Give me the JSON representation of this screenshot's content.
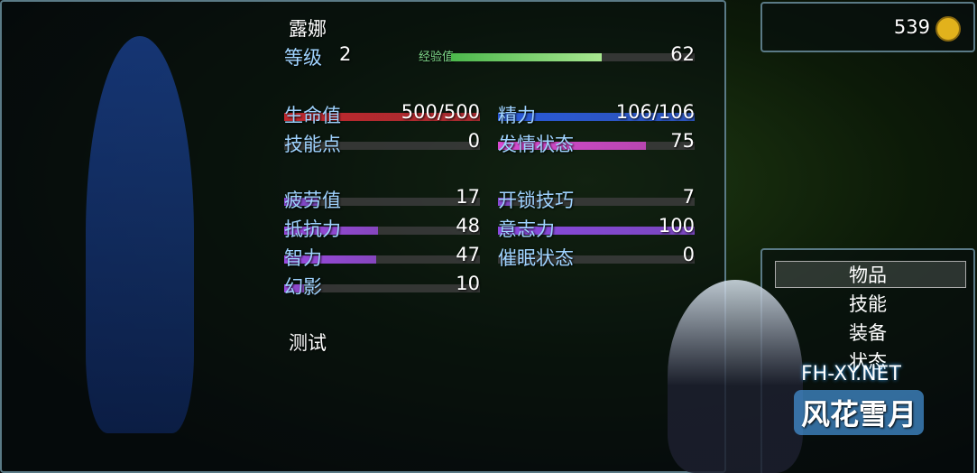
{
  "name": "露娜",
  "level_label": "等级",
  "level": 2,
  "exp_label": "经验值",
  "exp": 62,
  "stats_left": [
    {
      "label": "生命值",
      "value": "500/500",
      "color": "#c0282e"
    },
    {
      "label": "技能点",
      "value": 0,
      "color": "#8a4ad8"
    },
    {
      "label": "疲劳值",
      "value": 17,
      "color": "#8a4ad8"
    },
    {
      "label": "抵抗力",
      "value": 48,
      "color": "#9a4ae0"
    },
    {
      "label": "智力",
      "value": 47,
      "color": "#9a4ae0"
    },
    {
      "label": "幻影",
      "value": 10,
      "color": "#9a4ae0"
    }
  ],
  "stats_right": [
    {
      "label": "精力",
      "value": "106/106",
      "color": "#2a5ad8"
    },
    {
      "label": "发情状态",
      "value": 75,
      "color": "#d84ad0"
    },
    {
      "label": "开锁技巧",
      "value": 7,
      "color": "#8a4ad8"
    },
    {
      "label": "意志力",
      "value": 100,
      "color": "#8a4ae0"
    },
    {
      "label": "催眠状态",
      "value": 0,
      "color": "#8a4ad8"
    }
  ],
  "gold": 539,
  "test_label": "测试",
  "menu": [
    "物品",
    "技能",
    "装备",
    "状态"
  ],
  "watermark": {
    "url": "FH-XY.NET",
    "logo": "风花雪月"
  }
}
